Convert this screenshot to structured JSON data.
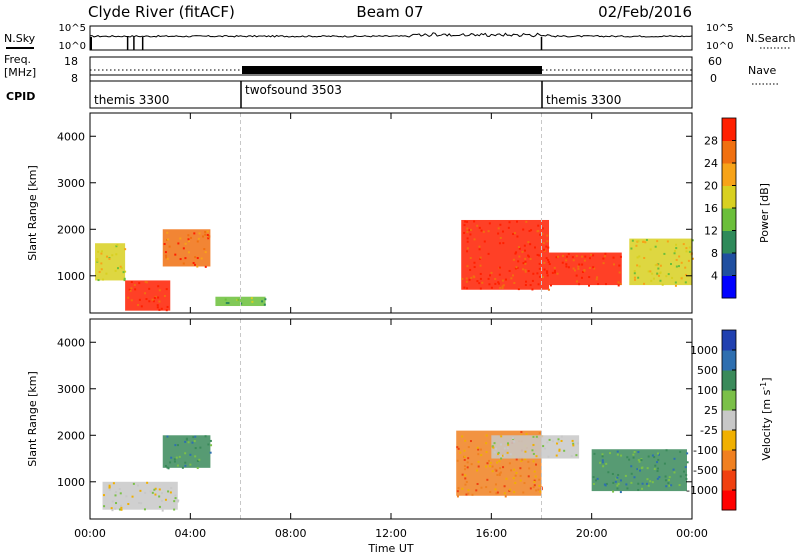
{
  "header": {
    "station": "Clyde River (fitACF)",
    "beam": "Beam 07",
    "date": "02/Feb/2016"
  },
  "sky_panel": {
    "left_label": "N.Sky",
    "right_label": "N.Search",
    "left_ticks": [
      "10^5",
      "10^0"
    ],
    "right_ticks": [
      "10^5",
      "10^0"
    ]
  },
  "freq_panel": {
    "left_label_line1": "Freq.",
    "left_label_line2": "[MHz]",
    "right_label": "Nave",
    "left_ticks": [
      "18",
      "8"
    ],
    "right_ticks": [
      "60",
      "0"
    ]
  },
  "cpid_panel": {
    "label": "CPID",
    "segments": [
      {
        "name": "themis 3300",
        "start_hour": 0,
        "end_hour": 6
      },
      {
        "name": "twofsound 3503",
        "start_hour": 6,
        "end_hour": 18
      },
      {
        "name": "themis 3300",
        "start_hour": 18,
        "end_hour": 24
      }
    ]
  },
  "colors": {
    "power_scale": [
      "#0000ff",
      "#1f4fa0",
      "#2e8a5a",
      "#6bbf3a",
      "#d8d020",
      "#f7a318",
      "#f07010",
      "#ff1f00"
    ],
    "velocity_scale": [
      "#2040b0",
      "#2e6fb0",
      "#3a8a5a",
      "#7bc048",
      "#c8c8c8",
      "#f0b000",
      "#f08020",
      "#f04010",
      "#ff0000"
    ]
  },
  "chart_data": [
    {
      "type": "heatmap",
      "name": "Power",
      "ylabel": "Slant Range [km]",
      "xlabel": "Time UT",
      "x_ticks": [
        "00:00",
        "04:00",
        "08:00",
        "12:00",
        "16:00",
        "20:00",
        "00:00"
      ],
      "x_tick_hours": [
        0,
        4,
        8,
        12,
        16,
        20,
        24
      ],
      "xlim": [
        0,
        24
      ],
      "ylim": [
        200,
        4500
      ],
      "y_ticks": [
        1000,
        2000,
        3000,
        4000
      ],
      "colorbar_label": "Power [dB]",
      "colorbar_ticks": [
        "4",
        "8",
        "12",
        "16",
        "20",
        "24",
        "28"
      ],
      "echo_regions": [
        {
          "t0": 0.2,
          "t1": 1.4,
          "r0": 900,
          "r1": 1700,
          "level": 4
        },
        {
          "t0": 1.4,
          "t1": 3.2,
          "r0": 250,
          "r1": 900,
          "level": 7
        },
        {
          "t0": 2.9,
          "t1": 4.8,
          "r0": 1200,
          "r1": 2000,
          "level": 6
        },
        {
          "t0": 5.0,
          "t1": 7.0,
          "r0": 350,
          "r1": 550,
          "level": 3
        },
        {
          "t0": 14.8,
          "t1": 18.3,
          "r0": 700,
          "r1": 2200,
          "level": 7
        },
        {
          "t0": 18.3,
          "t1": 21.2,
          "r0": 800,
          "r1": 1500,
          "level": 7
        },
        {
          "t0": 21.5,
          "t1": 24.0,
          "r0": 800,
          "r1": 1800,
          "level": 4
        }
      ]
    },
    {
      "type": "heatmap",
      "name": "Velocity",
      "ylabel": "Slant Range [km]",
      "xlabel": "Time UT",
      "x_ticks": [
        "00:00",
        "04:00",
        "08:00",
        "12:00",
        "16:00",
        "20:00",
        "00:00"
      ],
      "x_tick_hours": [
        0,
        4,
        8,
        12,
        16,
        20,
        24
      ],
      "xlim": [
        0,
        24
      ],
      "ylim": [
        200,
        4500
      ],
      "y_ticks": [
        1000,
        2000,
        3000,
        4000
      ],
      "colorbar_label": "Velocity [m s^-1]",
      "colorbar_ticks": [
        "1000",
        "500",
        "100",
        "25",
        "-25",
        "-100",
        "-500",
        "-1000"
      ],
      "echo_regions": [
        {
          "t0": 2.9,
          "t1": 4.8,
          "r0": 1300,
          "r1": 2000,
          "level": 2
        },
        {
          "t0": 0.5,
          "t1": 3.5,
          "r0": 400,
          "r1": 1000,
          "level": 4
        },
        {
          "t0": 14.6,
          "t1": 18.0,
          "r0": 700,
          "r1": 2100,
          "level": 6
        },
        {
          "t0": 16.0,
          "t1": 19.5,
          "r0": 1500,
          "r1": 2000,
          "level": 4
        },
        {
          "t0": 20.0,
          "t1": 23.8,
          "r0": 800,
          "r1": 1700,
          "level": 2
        }
      ]
    }
  ]
}
